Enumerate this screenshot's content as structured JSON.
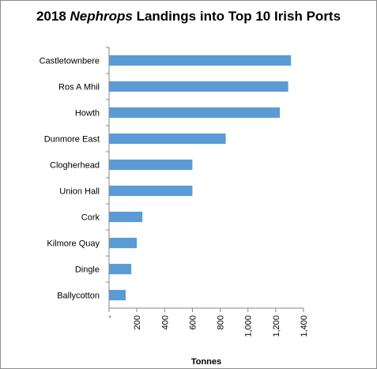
{
  "chart_data": {
    "type": "bar",
    "orientation": "horizontal",
    "title": {
      "prefix": "2018 ",
      "italic": "Nephrops",
      "suffix": " Landings into Top  10 Irish Ports"
    },
    "categories": [
      "Castletownbere",
      "Ros A Mhil",
      "Howth",
      "Dunmore East",
      "Clogherhead",
      "Union Hall",
      "Cork",
      "Kilmore Quay",
      "Dingle",
      "Ballycotton"
    ],
    "values": [
      1310,
      1290,
      1230,
      840,
      600,
      600,
      240,
      200,
      160,
      120
    ],
    "xlabel": "Tonnes",
    "xlim": [
      0,
      1400
    ],
    "x_ticks": [
      0,
      200,
      400,
      600,
      800,
      1000,
      1200,
      1400
    ],
    "x_tick_labels": [
      "-",
      "200",
      "400",
      "600",
      "800",
      "1,000",
      "1,200",
      "1,400"
    ],
    "bar_color": "#5b9bd5",
    "grid": false,
    "legend": "none"
  }
}
